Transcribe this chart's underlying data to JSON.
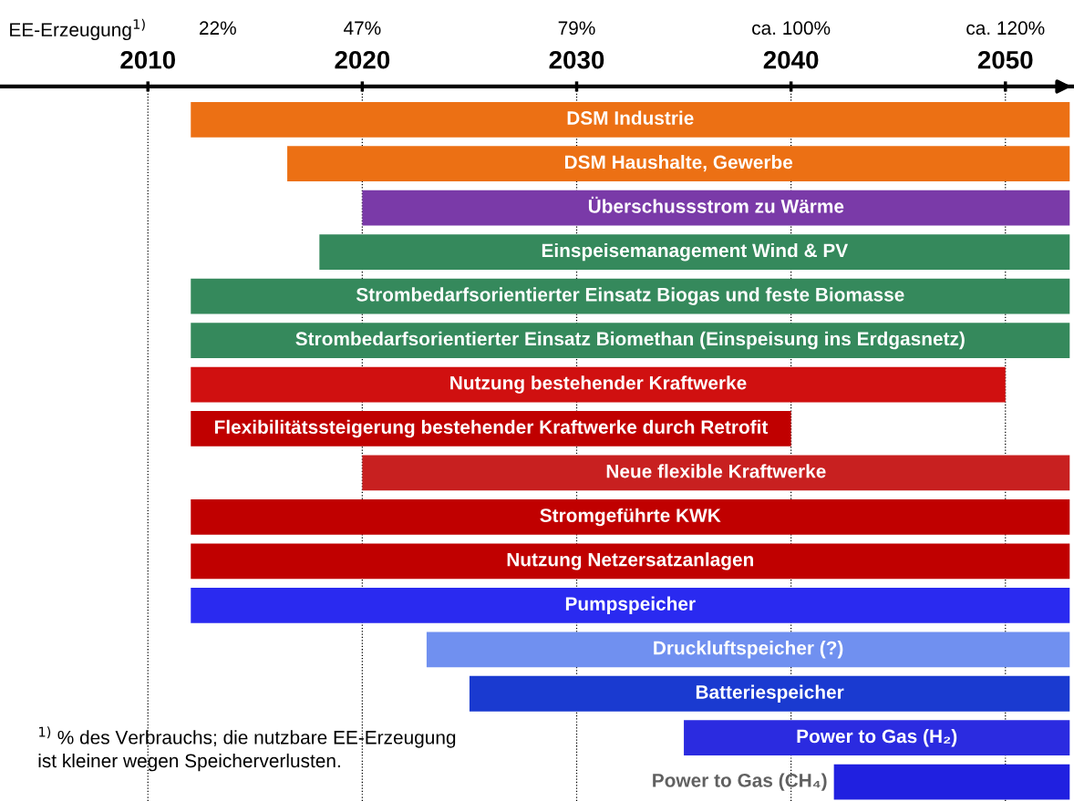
{
  "chart_data": {
    "type": "bar",
    "orientation": "horizontal",
    "tick_labels": "x",
    "grid": "x",
    "line_style": "dotted",
    "categories": [
      "DSM Industrie",
      "DSM Haushalte, Gewerbe",
      "Überschussstrom zu Wärme",
      "Einspeisemanagement Wind & PV",
      "Strombedarfsorientierter Einsatz Biogas und feste Biomasse",
      "Strombedarfsorientierter Einsatz Biomethan (Einspeisung ins Erdgasnetz)",
      "Nutzung bestehender Kraftwerke",
      "Flexibilitätssteigerung bestehender Kraftwerke durch Retrofit",
      "Neue flexible Kraftwerke",
      "Stromgeführte KWK",
      "Nutzung Netzersatzanlagen",
      "Pumpspeicher",
      "Druckluftspeicher (?)",
      "Batteriespeicher",
      "Power to Gas (H₂)",
      "Power to Gas (CH₄)"
    ],
    "base": [
      2012,
      2016.5,
      2020,
      2018,
      2012,
      2012,
      2012,
      2012,
      2020,
      2012,
      2012,
      2012,
      2023,
      2025,
      2035,
      2042
    ],
    "values": [
      41,
      36.5,
      33,
      35,
      41,
      41,
      38,
      28,
      33,
      41,
      41,
      41,
      30,
      28,
      18,
      11
    ],
    "colors": [
      "#ec7014",
      "#ec7014",
      "#7a3aa8",
      "#35895c",
      "#35895c",
      "#35895c",
      "#d01010",
      "#c00000",
      "#c82020",
      "#c00000",
      "#c00000",
      "#2a2af0",
      "#7090f0",
      "#1a3ad0",
      "#2b2be0",
      "#2020e0"
    ],
    "xlim": [
      2003.1,
      2053.2
    ],
    "xticks": [
      2010,
      2020,
      2030,
      2040,
      2050
    ],
    "annotations": [
      "EE-Erzeugung$^{1)}$",
      "22%",
      "47%",
      "79%",
      "ca. 100%",
      "ca. 120%",
      "$^{1)}$ % des Verbrauchs; die nutzbare EE-Erzeugung\nist kleiner wegen Speicherverlusten."
    ]
  }
}
